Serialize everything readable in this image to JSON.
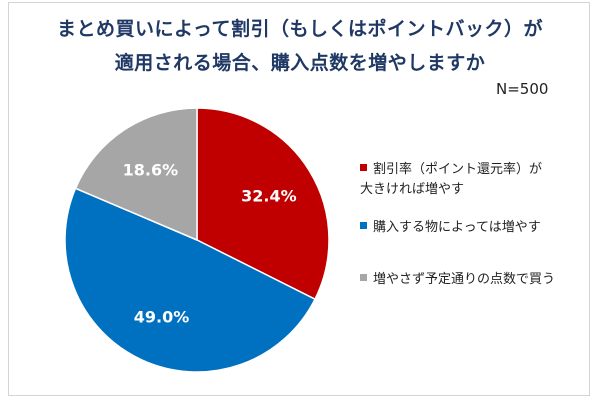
{
  "chart_data": {
    "type": "pie",
    "title_lines": [
      "まとめ買いによって割引（もしくはポイントバック）が",
      "適用される場合、購入点数を増やしますか"
    ],
    "annotation": "N=500",
    "slices": [
      {
        "label": "割引率（ポイント還元率）が大きければ増やす",
        "label_lines": [
          "割引率（ポイント還元率）が",
          "大きければ増やす"
        ],
        "value": 32.4,
        "display": "32.4%",
        "color": "#c00000"
      },
      {
        "label": "購入する物によっては増やす",
        "value": 49.0,
        "display": "49.0%",
        "color": "#0070c0"
      },
      {
        "label": "増やさず予定通りの点数で買う",
        "value": 18.6,
        "display": "18.6%",
        "color": "#a6a6a6"
      }
    ],
    "start_angle": "12 o'clock",
    "direction": "clockwise",
    "legend_position": "right"
  }
}
